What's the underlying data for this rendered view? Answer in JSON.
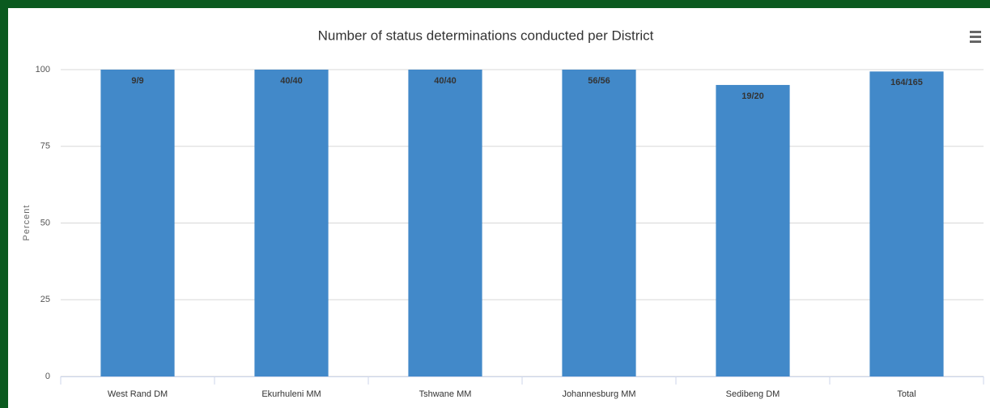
{
  "chart_data": {
    "type": "bar",
    "title": "Number of status determinations conducted per District",
    "y_label": "Percent",
    "categories": [
      "West Rand DM",
      "Ekurhuleni MM",
      "Tshwane MM",
      "Johannesburg MM",
      "Sedibeng DM",
      "Total"
    ],
    "values": [
      100,
      100,
      100,
      100,
      95,
      99.39
    ],
    "value_labels": [
      "9/9",
      "40/40",
      "40/40",
      "56/56",
      "19/20",
      "164/165"
    ],
    "color": "#4289c9",
    "ylim": [
      0,
      100
    ],
    "yticks": [
      0,
      25,
      50,
      75,
      100
    ],
    "grid": true
  }
}
